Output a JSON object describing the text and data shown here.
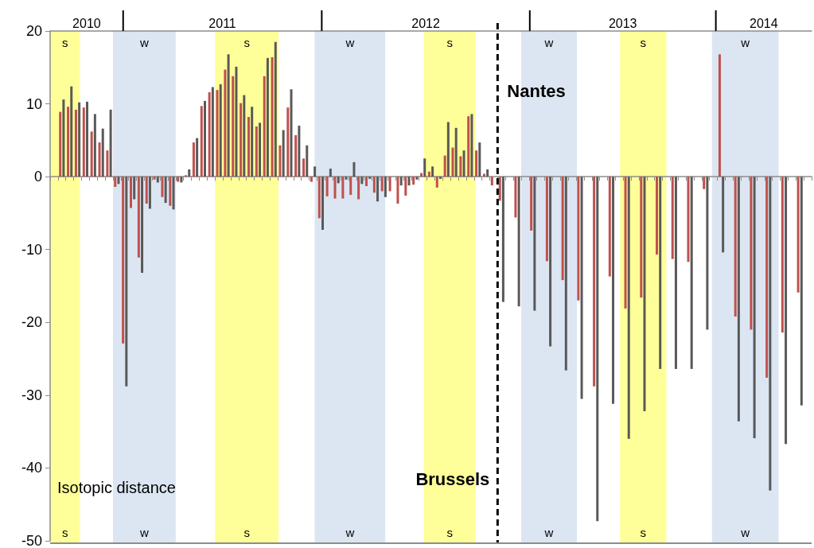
{
  "chart_data": {
    "type": "bar",
    "categories": [
      null,
      null,
      null,
      null,
      null,
      null,
      null,
      null,
      null,
      null,
      null,
      null,
      null,
      null,
      null,
      null,
      null,
      null,
      null,
      null,
      null,
      null,
      null,
      null,
      null,
      null,
      null,
      null,
      null,
      null,
      null,
      null,
      null,
      null,
      null,
      null,
      null,
      null,
      null,
      null,
      null,
      null,
      null,
      null,
      null,
      null,
      null,
      null,
      null,
      null,
      null,
      null,
      null,
      null,
      null,
      null,
      null,
      null,
      null,
      null,
      null,
      null,
      null,
      null,
      null,
      null,
      null,
      null,
      null,
      null,
      null,
      null,
      null,
      null,
      null,
      null,
      null,
      null,
      null,
      null,
      null,
      null,
      null,
      null,
      null,
      null,
      null,
      null,
      null,
      null,
      null,
      null,
      null,
      null,
      null,
      null,
      null
    ],
    "series": [
      {
        "color": "#c0504d",
        "values": [
          null,
          8.9,
          9.6,
          9.2,
          9.5,
          6.2,
          4.7,
          3.6,
          -1.4,
          -22.9,
          -4.3,
          -11.1,
          -3.7,
          -0.4,
          -2.8,
          -4.0,
          -0.7,
          0.2,
          4.7,
          9.7,
          11.6,
          11.9,
          14.7,
          13.8,
          10.1,
          8.2,
          6.9,
          13.8,
          16.4,
          4.3,
          9.5,
          5.7,
          2.5,
          -0.7,
          -5.7,
          -2.7,
          -3.0,
          -3.0,
          -2.5,
          -3.1,
          -1.3,
          -2.2,
          -2.0,
          -2.0,
          -3.7,
          -2.6,
          -1.1,
          0.5,
          0.7,
          -1.5,
          2.9,
          4.0,
          2.8,
          8.3,
          3.6,
          0.4,
          -1.2,
          -3.3,
          null,
          -5.6,
          null,
          -7.4,
          null,
          -11.6,
          null,
          -14.2,
          null,
          -17.0,
          null,
          -28.8,
          null,
          -13.7,
          null,
          -18.1,
          null,
          -16.6,
          null,
          -10.7,
          null,
          -11.3,
          null,
          -11.7,
          null,
          -1.7,
          null,
          16.8,
          null,
          -19.2,
          null,
          -21.0,
          null,
          -27.6,
          null,
          -21.4,
          null,
          -15.9,
          null
        ]
      },
      {
        "color": "#595959",
        "values": [
          null,
          10.6,
          12.4,
          10.2,
          10.3,
          8.6,
          6.6,
          9.2,
          -1.0,
          -28.8,
          -3.1,
          -13.2,
          -4.4,
          -0.8,
          -3.6,
          -4.5,
          -0.8,
          1.0,
          5.3,
          10.4,
          12.3,
          12.7,
          16.8,
          15.1,
          11.2,
          9.6,
          7.4,
          16.3,
          18.5,
          6.4,
          12.0,
          7.0,
          4.3,
          1.4,
          -7.3,
          1.1,
          -0.9,
          -0.4,
          2.0,
          -1.0,
          -0.3,
          -3.4,
          -2.8,
          null,
          -1.2,
          -1.2,
          -0.4,
          2.5,
          1.4,
          -0.3,
          7.5,
          6.7,
          3.6,
          8.6,
          4.7,
          1.0,
          null,
          -17.2,
          null,
          -17.8,
          null,
          -18.4,
          null,
          -23.3,
          null,
          -26.6,
          null,
          -30.5,
          null,
          -47.3,
          null,
          -31.2,
          null,
          -36.0,
          null,
          -32.2,
          null,
          -26.4,
          null,
          -26.4,
          null,
          -26.4,
          null,
          -21.0,
          null,
          -10.4,
          null,
          -33.6,
          null,
          -35.9,
          null,
          -43.1,
          null,
          -36.7,
          null,
          -31.4,
          null
        ]
      }
    ],
    "ylim": [
      -50,
      20
    ],
    "yticks": [
      -50,
      -40,
      -30,
      -20,
      -10,
      0,
      10,
      20
    ],
    "tick_labels": "y",
    "grid": false,
    "annotations": [
      "2010",
      "2011",
      "2012",
      "2013",
      "2014",
      "s",
      "w",
      "s",
      "w",
      "s",
      "w",
      "s",
      "w",
      "s",
      "w",
      "s",
      "w",
      "s",
      "w",
      "s",
      "w",
      "Nantes",
      "Brussels",
      "Isotopic distance"
    ]
  }
}
